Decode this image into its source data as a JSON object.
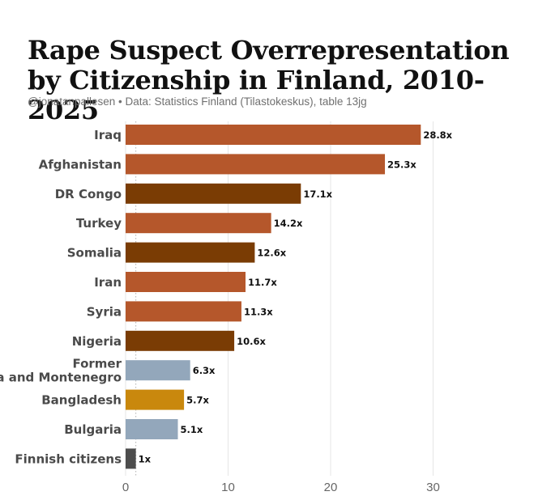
{
  "header": {
    "title": "Rape Suspect Overrepresentation by Citizenship in Finland, 2010-2025",
    "subtitle": "@jonatanpallesen • Data: Statistics Finland (Tilastokeskus), table 13jg"
  },
  "colors": {
    "orange": "#b5572b",
    "brown": "#7a3c04",
    "slate": "#93a7bb",
    "gold": "#c9880d",
    "dark": "#4d4d4d",
    "grid": "#e6e6e6",
    "reference": "#b0b0b0"
  },
  "chart_data": {
    "type": "bar",
    "orientation": "horizontal",
    "title": "Rape Suspect Overrepresentation by Citizenship in Finland, 2010-2025",
    "categories": [
      "Iraq",
      "Afghanistan",
      "DR Congo",
      "Turkey",
      "Somalia",
      "Iran",
      "Syria",
      "Nigeria",
      "Former Serbia and Montenegro",
      "Bangladesh",
      "Bulgaria",
      "Finnish citizens"
    ],
    "values": [
      28.8,
      25.3,
      17.1,
      14.2,
      12.6,
      11.7,
      11.3,
      10.6,
      6.3,
      5.7,
      5.1,
      1
    ],
    "labels": [
      "28.8x",
      "25.3x",
      "17.1x",
      "14.2x",
      "12.6x",
      "11.7x",
      "11.3x",
      "10.6x",
      "6.3x",
      "5.7x",
      "5.1x",
      "1x"
    ],
    "colors": [
      "orange",
      "orange",
      "brown",
      "orange",
      "brown",
      "orange",
      "orange",
      "brown",
      "slate",
      "gold",
      "slate",
      "dark"
    ],
    "xticks": [
      0,
      10,
      20,
      30
    ],
    "xlim": [
      0,
      36.5
    ],
    "reference_line": 1,
    "grid": true,
    "legend": "none"
  }
}
